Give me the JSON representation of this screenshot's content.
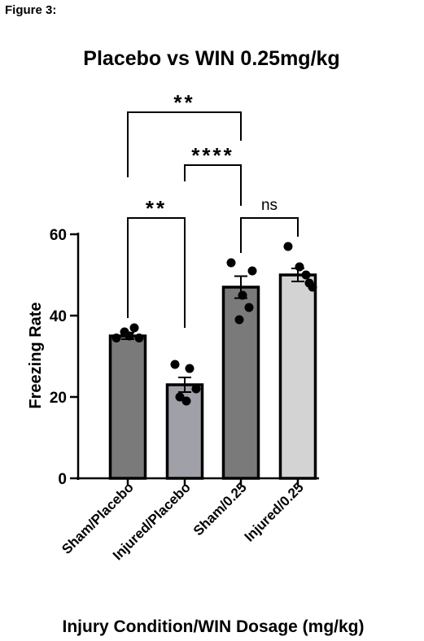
{
  "figure_label": "Figure 3:",
  "chart_data": {
    "type": "bar",
    "title": "Placebo vs WIN 0.25mg/kg",
    "xlabel": "Injury Condition/WIN Dosage (mg/kg)",
    "ylabel": "Freezing Rate",
    "ylim": [
      0,
      60
    ],
    "yticks": [
      0,
      20,
      40,
      60
    ],
    "grid": false,
    "legend": "none",
    "categories": [
      "Sham/Placebo",
      "Injured/Placebo",
      "Sham/0.25",
      "Injured/0.25"
    ],
    "values": [
      35,
      23,
      47,
      50
    ],
    "errors": [
      0.8,
      1.8,
      2.7,
      1.6
    ],
    "colors": [
      "#7a7a7a",
      "#a0a0a8",
      "#7a7a7a",
      "#d3d3d3"
    ],
    "points": [
      [
        34.5,
        36,
        37,
        34.5,
        35
      ],
      [
        28,
        27,
        22,
        20,
        19
      ],
      [
        53,
        51,
        45,
        39,
        42
      ],
      [
        57,
        52,
        50,
        48,
        47
      ]
    ],
    "comparisons": [
      {
        "from": 0,
        "to": 2,
        "label": "**",
        "y": 90
      },
      {
        "from": 1,
        "to": 2,
        "label": "****",
        "y": 77
      },
      {
        "from": 0,
        "to": 1,
        "label": "**",
        "y": 64
      },
      {
        "from": 2,
        "to": 3,
        "label": "ns",
        "y": 64
      }
    ]
  }
}
